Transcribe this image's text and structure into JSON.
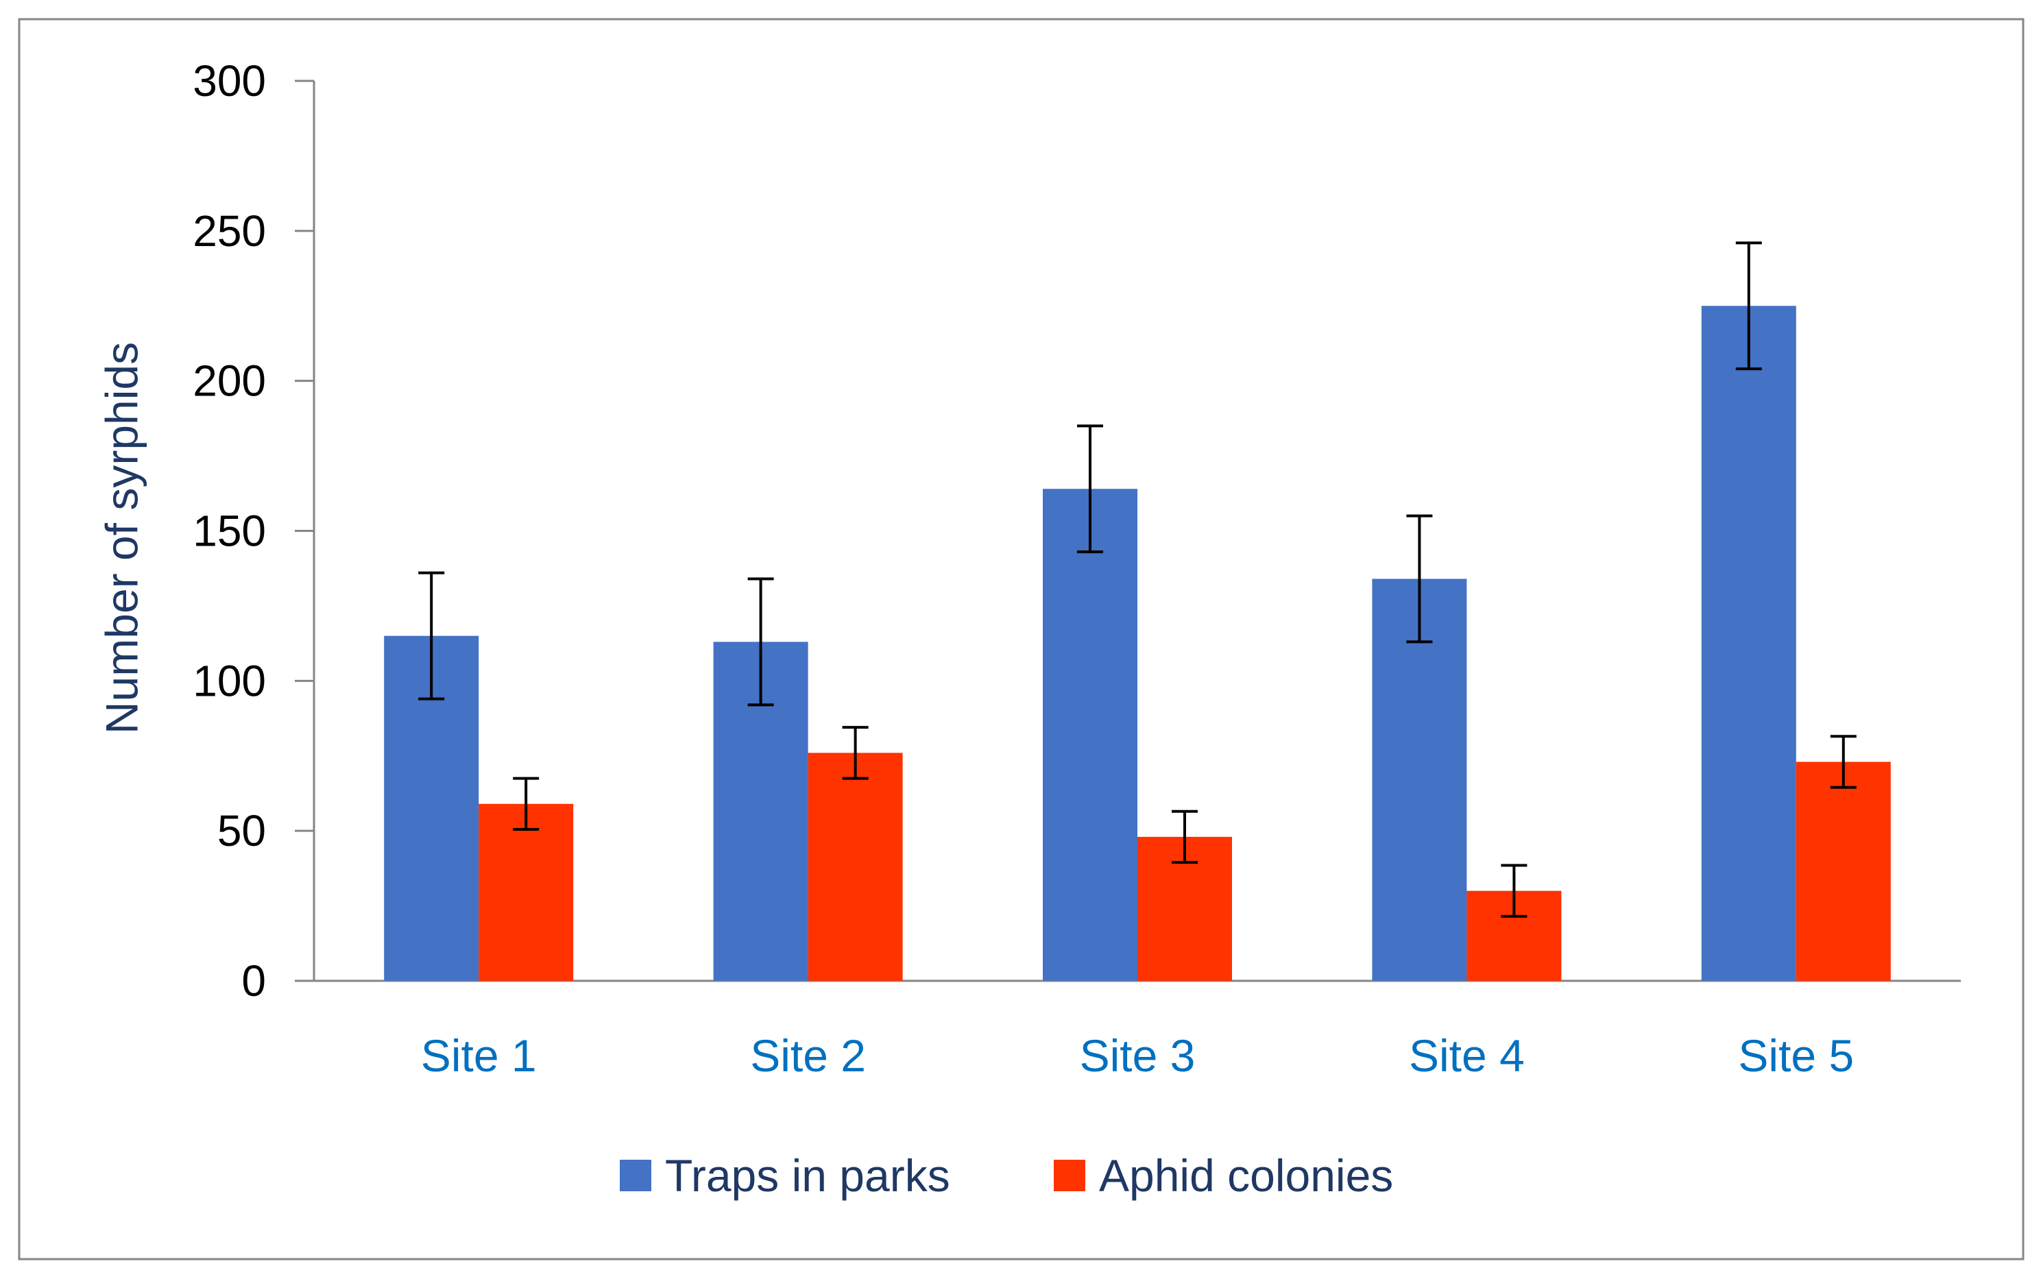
{
  "chart_data": {
    "type": "bar",
    "title": "",
    "xlabel": "",
    "ylabel": "Number of syrphids",
    "categories": [
      "Site 1",
      "Site 2",
      "Site 3",
      "Site 4",
      "Site 5"
    ],
    "ylim": [
      0,
      300
    ],
    "yticks": [
      0,
      50,
      100,
      150,
      200,
      250,
      300
    ],
    "grid": false,
    "legend_position": "bottom",
    "series": [
      {
        "name": "Traps in parks",
        "color": "#4472C4",
        "values": [
          115,
          113,
          164,
          134,
          225
        ],
        "errors": [
          21,
          21,
          21,
          21,
          21
        ]
      },
      {
        "name": "Aphid colonies",
        "color": "#FF3300",
        "values": [
          59,
          76,
          48,
          30,
          73
        ],
        "errors": [
          8.5,
          8.5,
          8.5,
          8.5,
          8.5
        ]
      }
    ],
    "colors": {
      "axis": "#868686",
      "tick_label": "#000000",
      "category_label": "#0070C0",
      "ylabel": "#1F3864",
      "legend_text": "#1F3864",
      "error_bar": "#000000",
      "frame": "#868686"
    }
  }
}
